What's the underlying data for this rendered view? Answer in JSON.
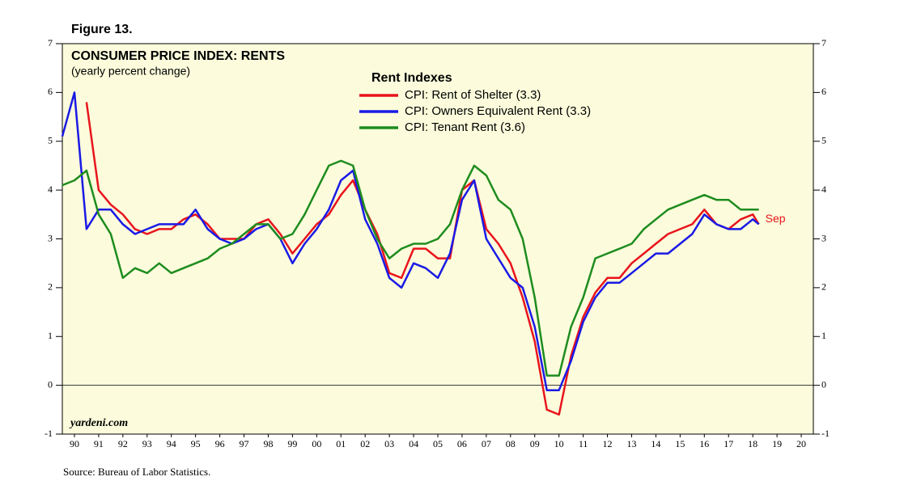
{
  "figure_label": "Figure 13.",
  "source": "Source: Bureau of Labor Statistics.",
  "chart_data": {
    "type": "line",
    "title": "CONSUMER PRICE INDEX: RENTS",
    "subtitle": "(yearly percent change)",
    "legend_title": "Rent Indexes",
    "watermark": "yardeni.com",
    "annotation": "Sep",
    "x": [
      1990,
      1990.5,
      1991,
      1991.5,
      1992,
      1992.5,
      1993,
      1993.5,
      1994,
      1994.5,
      1995,
      1995.5,
      1996,
      1996.5,
      1997,
      1997.5,
      1998,
      1998.5,
      1999,
      1999.5,
      2000,
      2000.5,
      2001,
      2001.5,
      2002,
      2002.5,
      2003,
      2003.5,
      2004,
      2004.5,
      2005,
      2005.5,
      2006,
      2006.5,
      2007,
      2007.5,
      2008,
      2008.5,
      2009,
      2009.5,
      2010,
      2010.5,
      2011,
      2011.5,
      2012,
      2012.5,
      2013,
      2013.5,
      2014,
      2014.5,
      2015,
      2015.5,
      2016,
      2016.5,
      2017,
      2017.5,
      2018,
      2018.5,
      2018.75
    ],
    "series": [
      {
        "name": "CPI: Rent of Shelter (3.3)",
        "color": "#e8141c",
        "values": [
          null,
          null,
          5.8,
          4.0,
          3.7,
          3.5,
          3.2,
          3.1,
          3.2,
          3.2,
          3.4,
          3.5,
          3.3,
          3.0,
          3.0,
          3.0,
          3.3,
          3.4,
          3.1,
          2.7,
          3.0,
          3.3,
          3.5,
          3.9,
          4.2,
          3.6,
          3.1,
          2.3,
          2.2,
          2.8,
          2.8,
          2.6,
          2.6,
          4.0,
          4.2,
          3.2,
          2.9,
          2.5,
          1.8,
          0.9,
          -0.5,
          -0.6,
          0.6,
          1.4,
          1.9,
          2.2,
          2.2,
          2.5,
          2.7,
          2.9,
          3.1,
          3.2,
          3.3,
          3.6,
          3.3,
          3.2,
          3.4,
          3.5,
          3.3
        ]
      },
      {
        "name": "CPI: Owners Equivalent Rent (3.3)",
        "color": "#1a1ae6",
        "values": [
          5.1,
          6.0,
          3.2,
          3.6,
          3.6,
          3.3,
          3.1,
          3.2,
          3.3,
          3.3,
          3.3,
          3.6,
          3.2,
          3.0,
          2.9,
          3.0,
          3.2,
          3.3,
          3.0,
          2.5,
          2.9,
          3.2,
          3.6,
          4.2,
          4.4,
          3.4,
          2.9,
          2.2,
          2.0,
          2.5,
          2.4,
          2.2,
          2.7,
          3.8,
          4.2,
          3.0,
          2.6,
          2.2,
          2.0,
          1.2,
          -0.1,
          -0.1,
          0.5,
          1.3,
          1.8,
          2.1,
          2.1,
          2.3,
          2.5,
          2.7,
          2.7,
          2.9,
          3.1,
          3.5,
          3.3,
          3.2,
          3.2,
          3.4,
          3.3
        ]
      },
      {
        "name": "CPI: Tenant Rent (3.6)",
        "color": "#1e8c1e",
        "values": [
          4.1,
          4.2,
          4.4,
          3.5,
          3.1,
          2.2,
          2.4,
          2.3,
          2.5,
          2.3,
          2.4,
          2.5,
          2.6,
          2.8,
          2.9,
          3.1,
          3.3,
          3.3,
          3.0,
          3.1,
          3.5,
          4.0,
          4.5,
          4.6,
          4.5,
          3.6,
          3.0,
          2.6,
          2.8,
          2.9,
          2.9,
          3.0,
          3.3,
          4.0,
          4.5,
          4.3,
          3.8,
          3.6,
          3.0,
          1.8,
          0.2,
          0.2,
          1.2,
          1.8,
          2.6,
          2.7,
          2.8,
          2.9,
          3.2,
          3.4,
          3.6,
          3.7,
          3.8,
          3.9,
          3.8,
          3.8,
          3.6,
          3.6,
          3.6
        ]
      }
    ],
    "xlim": [
      1990,
      2021
    ],
    "xticks": [
      {
        "value": 1990.5,
        "label": "90"
      },
      {
        "value": 1991.5,
        "label": "91"
      },
      {
        "value": 1992.5,
        "label": "92"
      },
      {
        "value": 1993.5,
        "label": "93"
      },
      {
        "value": 1994.5,
        "label": "94"
      },
      {
        "value": 1995.5,
        "label": "95"
      },
      {
        "value": 1996.5,
        "label": "96"
      },
      {
        "value": 1997.5,
        "label": "97"
      },
      {
        "value": 1998.5,
        "label": "98"
      },
      {
        "value": 1999.5,
        "label": "99"
      },
      {
        "value": 2000.5,
        "label": "00"
      },
      {
        "value": 2001.5,
        "label": "01"
      },
      {
        "value": 2002.5,
        "label": "02"
      },
      {
        "value": 2003.5,
        "label": "03"
      },
      {
        "value": 2004.5,
        "label": "04"
      },
      {
        "value": 2005.5,
        "label": "05"
      },
      {
        "value": 2006.5,
        "label": "06"
      },
      {
        "value": 2007.5,
        "label": "07"
      },
      {
        "value": 2008.5,
        "label": "08"
      },
      {
        "value": 2009.5,
        "label": "09"
      },
      {
        "value": 2010.5,
        "label": "10"
      },
      {
        "value": 2011.5,
        "label": "11"
      },
      {
        "value": 2012.5,
        "label": "12"
      },
      {
        "value": 2013.5,
        "label": "13"
      },
      {
        "value": 2014.5,
        "label": "14"
      },
      {
        "value": 2015.5,
        "label": "15"
      },
      {
        "value": 2016.5,
        "label": "16"
      },
      {
        "value": 2017.5,
        "label": "17"
      },
      {
        "value": 2018.5,
        "label": "18"
      },
      {
        "value": 2019.5,
        "label": "19"
      },
      {
        "value": 2020.5,
        "label": "20"
      }
    ],
    "ylim": [
      -1,
      7
    ],
    "yticks": [
      -1,
      0,
      1,
      2,
      3,
      4,
      5,
      6,
      7
    ],
    "grid": false,
    "background": "#fcfcdc"
  }
}
